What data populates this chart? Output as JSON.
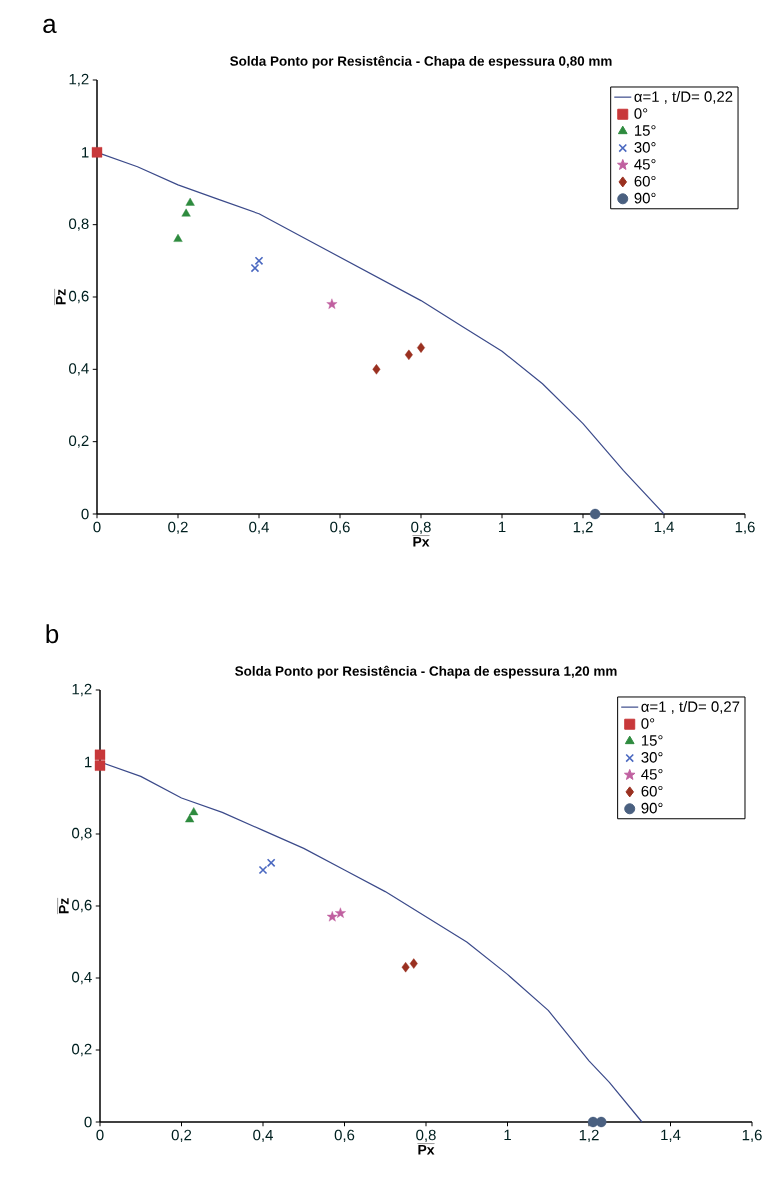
{
  "chart_data": [
    {
      "type": "scatter",
      "title": "Solda Ponto por Resistência - Chapa de espessura 0,80 mm",
      "xlabel": "Px",
      "ylabel": "Pz",
      "annotations": [
        "a"
      ],
      "xlim": [
        0,
        1.6
      ],
      "ylim": [
        0,
        1.2
      ],
      "xticks": [
        0,
        {
          "value": 0.2,
          "label": "0,2"
        },
        {
          "value": 0.4,
          "label": "0,4"
        },
        {
          "value": 0.6,
          "label": "0,6"
        },
        {
          "value": 0.8,
          "label": "0,8"
        },
        1,
        {
          "value": 1.2,
          "label": "1,2"
        },
        {
          "value": 1.4,
          "label": "1,4"
        },
        {
          "value": 1.6,
          "label": "1,6"
        }
      ],
      "yticks": [
        0,
        {
          "value": 0.2,
          "label": "0,2"
        },
        {
          "value": 0.4,
          "label": "0,4"
        },
        {
          "value": 0.6,
          "label": "0,6"
        },
        {
          "value": 0.8,
          "label": "0,8"
        },
        1,
        {
          "value": 1.2,
          "label": "1,2"
        }
      ],
      "legend": "top right",
      "grid": false,
      "series": [
        {
          "name": "α=1 , t/D= 0,22",
          "type": "line",
          "marker": "none",
          "color": "#3b4a8a",
          "x": [
            0,
            0.1,
            0.2,
            0.3,
            0.4,
            0.5,
            0.6,
            0.7,
            0.8,
            0.9,
            1.0,
            1.1,
            1.2,
            1.3,
            1.4
          ],
          "values": [
            1,
            0.96,
            0.91,
            0.87,
            0.83,
            0.77,
            0.71,
            0.65,
            0.59,
            0.52,
            0.45,
            0.36,
            0.25,
            0.12,
            0
          ]
        },
        {
          "name": "0°",
          "marker": "square",
          "color": "#c8383a",
          "x": [
            0
          ],
          "values": [
            1
          ]
        },
        {
          "name": "15°",
          "marker": "triangle",
          "color": "#2e8b3e",
          "x": [
            0.23,
            0.22,
            0.2
          ],
          "values": [
            0.86,
            0.83,
            0.76
          ]
        },
        {
          "name": "30°",
          "marker": "cross",
          "color": "#4a68c0",
          "x": [
            0.39,
            0.4
          ],
          "values": [
            0.68,
            0.7
          ]
        },
        {
          "name": "45°",
          "marker": "star",
          "color": "#c060a0",
          "x": [
            0.58
          ],
          "values": [
            0.58
          ]
        },
        {
          "name": "60°",
          "marker": "diamond",
          "color": "#9a3020",
          "x": [
            0.69,
            0.77,
            0.8
          ],
          "values": [
            0.4,
            0.44,
            0.46
          ]
        },
        {
          "name": "90°",
          "marker": "circle",
          "color": "#4a6080",
          "x": [
            1.23
          ],
          "values": [
            0
          ]
        }
      ]
    },
    {
      "type": "scatter",
      "title": "Solda Ponto por Resistência - Chapa de espessura 1,20 mm",
      "xlabel": "Px",
      "ylabel": "Pz",
      "annotations": [
        "b"
      ],
      "xlim": [
        0,
        1.6
      ],
      "ylim": [
        0,
        1.2
      ],
      "xticks": [
        0,
        {
          "value": 0.2,
          "label": "0,2"
        },
        {
          "value": 0.4,
          "label": "0,4"
        },
        {
          "value": 0.6,
          "label": "0,6"
        },
        {
          "value": 0.8,
          "label": "0,8"
        },
        1,
        {
          "value": 1.2,
          "label": "1,2"
        },
        {
          "value": 1.4,
          "label": "1,4"
        },
        {
          "value": 1.6,
          "label": "1,6"
        }
      ],
      "yticks": [
        0,
        {
          "value": 0.2,
          "label": "0,2"
        },
        {
          "value": 0.4,
          "label": "0,4"
        },
        {
          "value": 0.6,
          "label": "0,6"
        },
        {
          "value": 0.8,
          "label": "0,8"
        },
        1,
        {
          "value": 1.2,
          "label": "1,2"
        }
      ],
      "legend": "top right",
      "grid": false,
      "series": [
        {
          "name": "α=1 , t/D= 0,27",
          "type": "line",
          "marker": "none",
          "color": "#3b4a8a",
          "x": [
            0,
            0.1,
            0.2,
            0.3,
            0.4,
            0.5,
            0.6,
            0.7,
            0.8,
            0.9,
            1.0,
            1.1,
            1.2,
            1.25,
            1.33
          ],
          "values": [
            1,
            0.96,
            0.9,
            0.86,
            0.81,
            0.76,
            0.7,
            0.64,
            0.57,
            0.5,
            0.41,
            0.31,
            0.17,
            0.11,
            0
          ]
        },
        {
          "name": "0°",
          "marker": "square",
          "color": "#c8383a",
          "x": [
            0,
            0
          ],
          "values": [
            1.02,
            0.99
          ]
        },
        {
          "name": "15°",
          "marker": "triangle",
          "color": "#2e8b3e",
          "x": [
            0.23,
            0.22
          ],
          "values": [
            0.86,
            0.84
          ]
        },
        {
          "name": "30°",
          "marker": "cross",
          "color": "#4a68c0",
          "x": [
            0.4,
            0.42
          ],
          "values": [
            0.7,
            0.72
          ]
        },
        {
          "name": "45°",
          "marker": "star",
          "color": "#c060a0",
          "x": [
            0.57,
            0.59
          ],
          "values": [
            0.57,
            0.58
          ]
        },
        {
          "name": "60°",
          "marker": "diamond",
          "color": "#9a3020",
          "x": [
            0.75,
            0.77
          ],
          "values": [
            0.43,
            0.44
          ]
        },
        {
          "name": "90°",
          "marker": "circle",
          "color": "#4a6080",
          "x": [
            1.21,
            1.23
          ],
          "values": [
            0,
            0
          ]
        }
      ]
    }
  ]
}
